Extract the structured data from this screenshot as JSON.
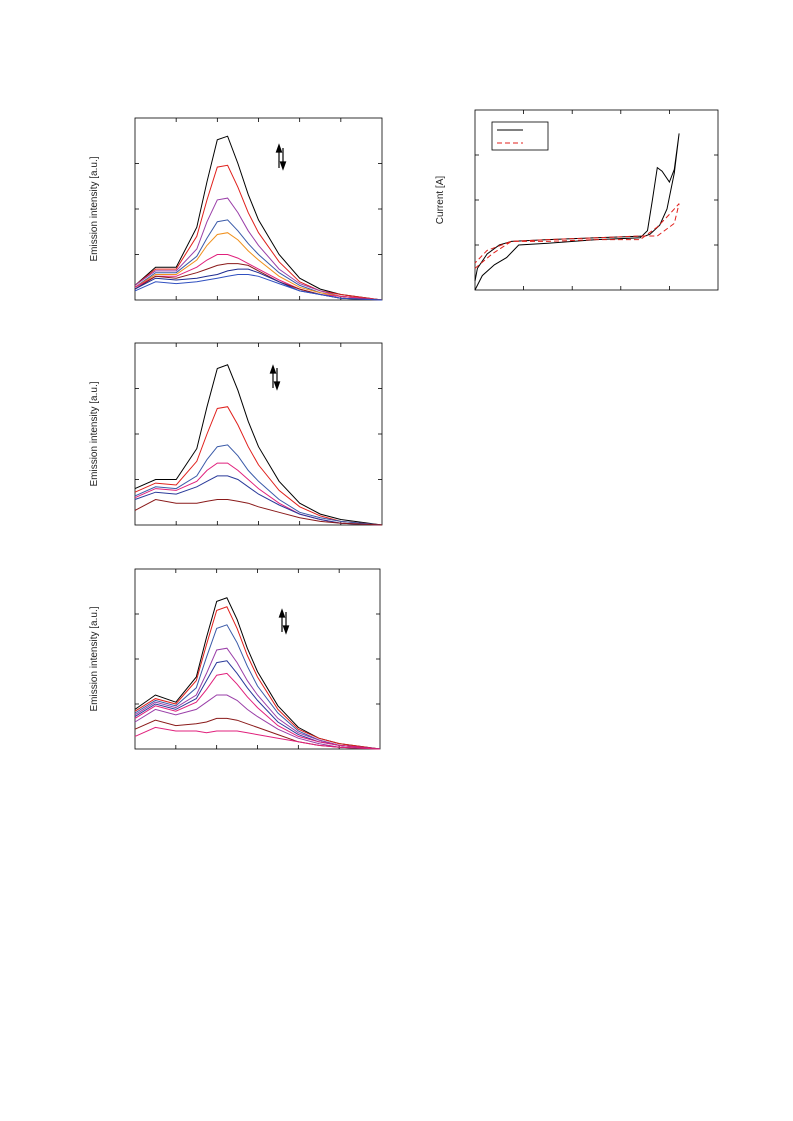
{
  "chart_data": [
    {
      "type": "line",
      "ylabel": "Emission intensity [a.u.]",
      "xlim": [
        0,
        12
      ],
      "ylim": [
        0,
        100
      ],
      "xticks": [
        2,
        4,
        6,
        8,
        10
      ],
      "yticks": [
        25,
        50,
        75
      ],
      "x": [
        0,
        1,
        2,
        3,
        3.5,
        4,
        4.5,
        5,
        5.5,
        6,
        7,
        8,
        9,
        10,
        12
      ],
      "series": [
        {
          "color": "#000000",
          "values": [
            8,
            18,
            18,
            40,
            65,
            88,
            90,
            75,
            58,
            44,
            25,
            12,
            6,
            3,
            0
          ]
        },
        {
          "color": "#e0201c",
          "values": [
            8,
            17,
            17,
            35,
            55,
            73,
            74,
            62,
            48,
            37,
            21,
            10,
            5,
            3,
            0
          ]
        },
        {
          "color": "#9a3fa8",
          "values": [
            8,
            16,
            16,
            28,
            43,
            55,
            56,
            48,
            38,
            30,
            17,
            9,
            5,
            2,
            0
          ]
        },
        {
          "color": "#3a5aa8",
          "values": [
            7,
            15,
            15,
            24,
            34,
            43,
            44,
            38,
            31,
            25,
            15,
            8,
            4,
            2,
            0
          ]
        },
        {
          "color": "#f0901c",
          "values": [
            7,
            14,
            14,
            22,
            30,
            36,
            37,
            33,
            27,
            22,
            13,
            7,
            4,
            2,
            0
          ]
        },
        {
          "color": "#e0207c",
          "values": [
            7,
            13,
            13,
            18,
            22,
            25,
            25,
            23,
            20,
            17,
            11,
            6,
            3,
            2,
            0
          ]
        },
        {
          "color": "#8a1a1a",
          "values": [
            6,
            13,
            12,
            15,
            17,
            19,
            20,
            20,
            19,
            16,
            10,
            6,
            3,
            1,
            0
          ]
        },
        {
          "color": "#1c2a90",
          "values": [
            6,
            12,
            11,
            12,
            13,
            14,
            16,
            17,
            17,
            15,
            10,
            5,
            3,
            1,
            0
          ]
        },
        {
          "color": "#3050c0",
          "values": [
            5,
            10,
            9,
            10,
            11,
            12,
            13,
            14,
            14,
            13,
            9,
            5,
            3,
            1,
            0
          ]
        }
      ]
    },
    {
      "type": "line",
      "ylabel": "Emission intensity [a.u.]",
      "xlim": [
        0,
        12
      ],
      "ylim": [
        0,
        100
      ],
      "xticks": [
        2,
        4,
        6,
        8,
        10
      ],
      "yticks": [
        25,
        50,
        75
      ],
      "x": [
        0,
        1,
        2,
        3,
        3.5,
        4,
        4.5,
        5,
        5.5,
        6,
        7,
        8,
        9,
        10,
        12
      ],
      "series": [
        {
          "color": "#000000",
          "values": [
            20,
            25,
            25,
            42,
            65,
            86,
            88,
            74,
            57,
            43,
            24,
            12,
            6,
            3,
            0
          ]
        },
        {
          "color": "#e0201c",
          "values": [
            18,
            23,
            22,
            35,
            50,
            64,
            65,
            55,
            43,
            33,
            19,
            10,
            5,
            2,
            0
          ]
        },
        {
          "color": "#3a5aa8",
          "values": [
            16,
            21,
            20,
            27,
            36,
            43,
            44,
            38,
            30,
            24,
            14,
            7,
            4,
            2,
            0
          ]
        },
        {
          "color": "#e0207c",
          "values": [
            15,
            20,
            19,
            24,
            30,
            34,
            34,
            30,
            25,
            20,
            12,
            6,
            3,
            1,
            0
          ]
        },
        {
          "color": "#2a3a9a",
          "values": [
            14,
            18,
            17,
            21,
            24,
            27,
            27,
            25,
            21,
            17,
            11,
            6,
            3,
            1,
            0
          ]
        },
        {
          "color": "#8a1a1a",
          "values": [
            8,
            14,
            12,
            12,
            13,
            14,
            14,
            13,
            12,
            10,
            7,
            4,
            2,
            1,
            0
          ]
        }
      ]
    },
    {
      "type": "line",
      "ylabel": "Emission intensity [a.u.]",
      "xlim": [
        0,
        12
      ],
      "ylim": [
        0,
        100
      ],
      "xticks": [
        2,
        4,
        6,
        8,
        10
      ],
      "yticks": [
        25,
        50,
        75
      ],
      "x": [
        0,
        1,
        2,
        3,
        3.5,
        4,
        4.5,
        5,
        5.5,
        6,
        7,
        8,
        9,
        10,
        12
      ],
      "series": [
        {
          "color": "#000000",
          "values": [
            22,
            30,
            26,
            40,
            62,
            82,
            84,
            72,
            56,
            43,
            24,
            12,
            6,
            3,
            0
          ]
        },
        {
          "color": "#e0201c",
          "values": [
            21,
            28,
            25,
            38,
            58,
            77,
            79,
            67,
            52,
            40,
            22,
            11,
            6,
            3,
            0
          ]
        },
        {
          "color": "#3a5aa8",
          "values": [
            20,
            27,
            24,
            34,
            51,
            67,
            69,
            59,
            46,
            35,
            20,
            10,
            5,
            2,
            0
          ]
        },
        {
          "color": "#9a3fa8",
          "values": [
            19,
            26,
            23,
            30,
            42,
            55,
            56,
            48,
            38,
            30,
            17,
            9,
            5,
            2,
            0
          ]
        },
        {
          "color": "#2a3a9a",
          "values": [
            18,
            25,
            22,
            28,
            38,
            48,
            49,
            42,
            34,
            27,
            15,
            8,
            4,
            2,
            0
          ]
        },
        {
          "color": "#e0207c",
          "values": [
            17,
            24,
            21,
            26,
            33,
            41,
            42,
            36,
            29,
            23,
            13,
            7,
            4,
            2,
            0
          ]
        },
        {
          "color": "#9a3fa8",
          "values": [
            15,
            22,
            19,
            22,
            26,
            30,
            30,
            27,
            22,
            18,
            11,
            6,
            3,
            1,
            0
          ]
        },
        {
          "color": "#8a1a1a",
          "values": [
            11,
            16,
            13,
            14,
            15,
            17,
            17,
            16,
            14,
            12,
            8,
            4,
            2,
            1,
            0
          ]
        },
        {
          "color": "#e0207c",
          "values": [
            7,
            12,
            10,
            10,
            9,
            10,
            10,
            10,
            9,
            8,
            6,
            4,
            2,
            1,
            0
          ]
        }
      ]
    },
    {
      "type": "line",
      "ylabel": "Current [A]",
      "xlim": [
        0,
        10
      ],
      "ylim": [
        0,
        100
      ],
      "xticks": [
        2,
        4,
        6,
        8
      ],
      "yticks": [
        25,
        50,
        75
      ],
      "series": [
        {
          "color": "#000000",
          "dash": false,
          "x": [
            0,
            0.3,
            0.8,
            1.3,
            1.8,
            3,
            5,
            6.8,
            7.1,
            7.3,
            7.5,
            7.7,
            8,
            8.2,
            8.4,
            8.2,
            7.9,
            7.6,
            7.2,
            7,
            5,
            3,
            1.5,
            1,
            0.5,
            0.1,
            0
          ],
          "values": [
            0,
            8,
            14,
            18,
            25,
            26,
            28,
            29,
            33,
            50,
            68,
            66,
            60,
            67,
            87,
            65,
            45,
            36,
            31,
            30,
            29,
            28,
            27,
            25,
            20,
            12,
            5
          ]
        },
        {
          "color": "#e0201c",
          "dash": true,
          "x": [
            0,
            0.7,
            1.5,
            3,
            5,
            6.8,
            7.5,
            8,
            8.4,
            8.2,
            7.5,
            6.8,
            5,
            3,
            1.5,
            0.5,
            0
          ],
          "values": [
            12,
            20,
            27,
            27,
            28,
            28,
            35,
            42,
            48,
            37,
            30,
            30,
            29,
            28,
            27,
            22,
            15
          ]
        }
      ]
    }
  ]
}
